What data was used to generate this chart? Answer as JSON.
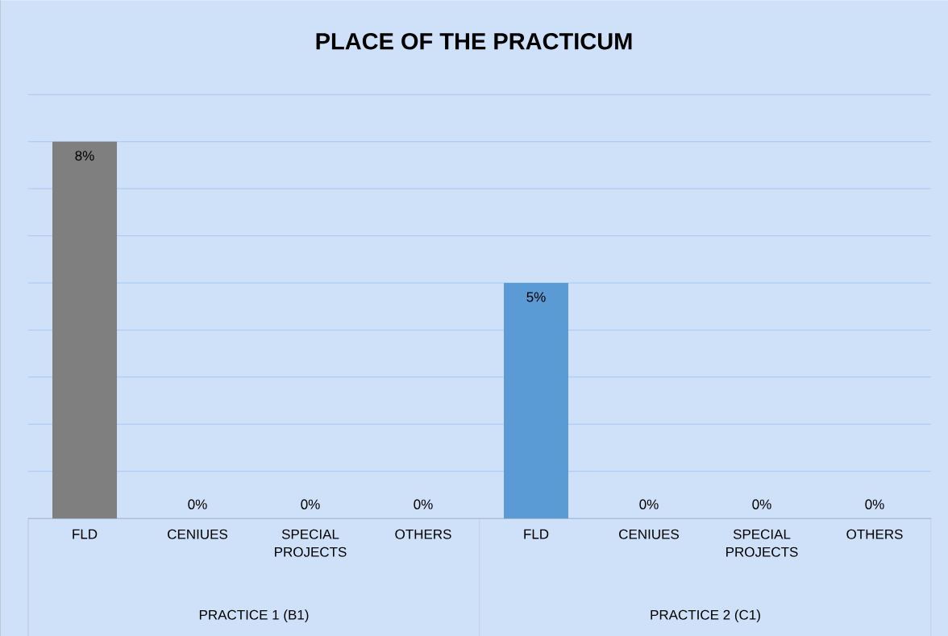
{
  "chart_data": {
    "type": "bar",
    "title": "PLACE OF THE PRACTICUM",
    "categories": [
      "FLD",
      "CENIUES",
      "SPECIAL PROJECTS",
      "OTHERS",
      "FLD",
      "CENIUES",
      "SPECIAL PROJECTS",
      "OTHERS"
    ],
    "values": [
      8,
      0,
      0,
      0,
      5,
      0,
      0,
      0
    ],
    "value_labels": [
      "8%",
      "0%",
      "0%",
      "0%",
      "5%",
      "0%",
      "0%",
      "0%"
    ],
    "colors": [
      "#7f7f7f",
      "#7f7f7f",
      "#7f7f7f",
      "#7f7f7f",
      "#5b9bd5",
      "#5b9bd5",
      "#5b9bd5",
      "#5b9bd5"
    ],
    "ylim": [
      0,
      9
    ],
    "yticks": [
      {
        "value": 0,
        "label": null
      },
      {
        "value": 1,
        "label": null
      },
      {
        "value": 2,
        "label": null
      },
      {
        "value": 3,
        "label": null
      },
      {
        "value": 4,
        "label": null
      },
      {
        "value": 5,
        "label": null
      },
      {
        "value": 6,
        "label": null
      },
      {
        "value": 7,
        "label": null
      },
      {
        "value": 8,
        "label": null
      },
      {
        "value": 9,
        "label": null
      }
    ],
    "tick_labels": "x",
    "grid": "y",
    "annotations": [
      "PRACTICE 1 (B1)",
      "PRACTICE 2 (C1)"
    ]
  }
}
